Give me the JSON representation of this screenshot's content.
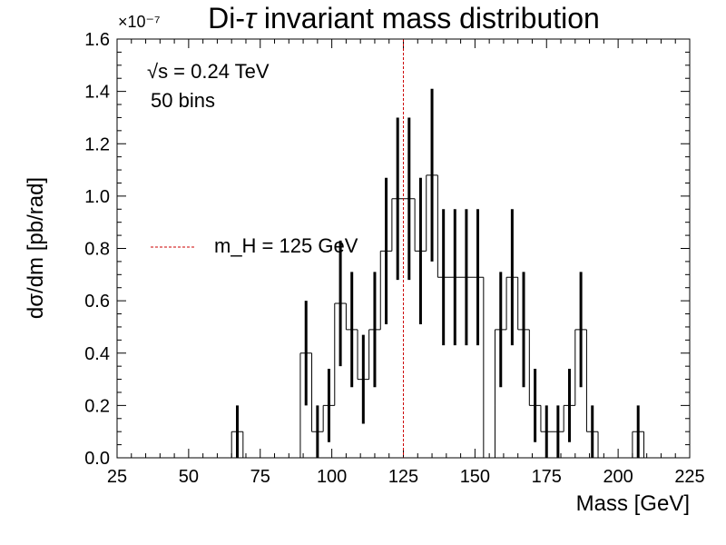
{
  "chart_data": {
    "type": "histogram",
    "title": "Di-τ invariant mass distribution",
    "xlabel": "Mass [GeV]",
    "ylabel": "dσ/dm [pb/rad]",
    "y_exponent": "×10⁻⁷",
    "xlim": [
      25,
      225
    ],
    "ylim": [
      0,
      1.6
    ],
    "x_ticks": [
      "25",
      "50",
      "75",
      "100",
      "125",
      "150",
      "175",
      "200",
      "225"
    ],
    "y_ticks": [
      "0.0",
      "0.2",
      "0.4",
      "0.6",
      "0.8",
      "1.0",
      "1.2",
      "1.4",
      "1.6"
    ],
    "annotations": [
      "√s = 0.24 TeV",
      "50 bins"
    ],
    "bin_width": 4,
    "bin_edges_start": 25,
    "bins": [
      [
        65,
        0.1,
        0.1
      ],
      [
        89,
        0.4,
        0.2
      ],
      [
        93,
        0.1,
        0.1
      ],
      [
        97,
        0.2,
        0.14
      ],
      [
        101,
        0.59,
        0.24
      ],
      [
        105,
        0.49,
        0.22
      ],
      [
        109,
        0.3,
        0.17
      ],
      [
        113,
        0.49,
        0.22
      ],
      [
        117,
        0.79,
        0.28
      ],
      [
        121,
        0.99,
        0.31
      ],
      [
        125,
        0.99,
        0.31
      ],
      [
        129,
        0.79,
        0.28
      ],
      [
        133,
        1.08,
        0.33
      ],
      [
        137,
        0.69,
        0.26
      ],
      [
        141,
        0.69,
        0.26
      ],
      [
        145,
        0.69,
        0.26
      ],
      [
        149,
        0.69,
        0.26
      ],
      [
        157,
        0.49,
        0.22
      ],
      [
        161,
        0.69,
        0.26
      ],
      [
        165,
        0.49,
        0.22
      ],
      [
        169,
        0.2,
        0.14
      ],
      [
        173,
        0.1,
        0.1
      ],
      [
        177,
        0.1,
        0.1
      ],
      [
        181,
        0.2,
        0.14
      ],
      [
        185,
        0.49,
        0.22
      ],
      [
        189,
        0.1,
        0.1
      ],
      [
        205,
        0.1,
        0.1
      ]
    ],
    "reference_line": {
      "x": 125,
      "label": "m_H = 125 GeV",
      "color": "#cc0000"
    },
    "legend": "left"
  }
}
